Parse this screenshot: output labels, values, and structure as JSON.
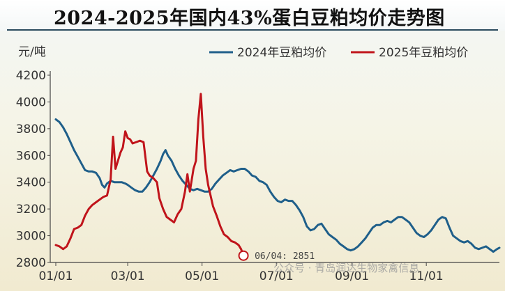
{
  "chart_data": {
    "type": "line",
    "title": "2024-2025年国内43%蛋白豆粕均价走势图",
    "ylabel": "元/吨",
    "ylim": [
      2800,
      4200
    ],
    "yticks": [
      "4200",
      "4000",
      "3800",
      "3600",
      "3400",
      "3200",
      "3000",
      "2800"
    ],
    "xlim": [
      "01/01",
      "12/31"
    ],
    "xticks": [
      "01/01",
      "03/01",
      "05/01",
      "07/01",
      "09/01",
      "11/01"
    ],
    "legend_position": "top-right",
    "grid": false,
    "series": [
      {
        "name": "2024年豆粕均价",
        "color": "#1f5f8a",
        "points": [
          [
            "01/01",
            3870
          ],
          [
            "01/04",
            3850
          ],
          [
            "01/07",
            3810
          ],
          [
            "01/10",
            3760
          ],
          [
            "01/13",
            3700
          ],
          [
            "01/16",
            3640
          ],
          [
            "01/19",
            3590
          ],
          [
            "01/22",
            3540
          ],
          [
            "01/25",
            3490
          ],
          [
            "01/28",
            3480
          ],
          [
            "01/31",
            3480
          ],
          [
            "02/03",
            3470
          ],
          [
            "02/06",
            3430
          ],
          [
            "02/08",
            3380
          ],
          [
            "02/10",
            3360
          ],
          [
            "02/12",
            3390
          ],
          [
            "02/15",
            3410
          ],
          [
            "02/18",
            3400
          ],
          [
            "02/21",
            3400
          ],
          [
            "02/24",
            3400
          ],
          [
            "02/27",
            3390
          ],
          [
            "03/01",
            3380
          ],
          [
            "03/04",
            3360
          ],
          [
            "03/07",
            3340
          ],
          [
            "03/10",
            3330
          ],
          [
            "03/13",
            3330
          ],
          [
            "03/16",
            3360
          ],
          [
            "03/19",
            3400
          ],
          [
            "03/22",
            3450
          ],
          [
            "03/25",
            3500
          ],
          [
            "03/28",
            3560
          ],
          [
            "03/30",
            3610
          ],
          [
            "04/01",
            3640
          ],
          [
            "04/03",
            3600
          ],
          [
            "04/06",
            3560
          ],
          [
            "04/09",
            3500
          ],
          [
            "04/12",
            3450
          ],
          [
            "04/15",
            3410
          ],
          [
            "04/18",
            3380
          ],
          [
            "04/21",
            3350
          ],
          [
            "04/24",
            3340
          ],
          [
            "04/27",
            3350
          ],
          [
            "04/30",
            3340
          ],
          [
            "05/03",
            3330
          ],
          [
            "05/06",
            3330
          ],
          [
            "05/09",
            3350
          ],
          [
            "05/12",
            3390
          ],
          [
            "05/15",
            3420
          ],
          [
            "05/18",
            3450
          ],
          [
            "05/21",
            3470
          ],
          [
            "05/24",
            3490
          ],
          [
            "05/27",
            3480
          ],
          [
            "05/30",
            3490
          ],
          [
            "06/02",
            3500
          ],
          [
            "06/05",
            3500
          ],
          [
            "06/08",
            3480
          ],
          [
            "06/11",
            3450
          ],
          [
            "06/14",
            3440
          ],
          [
            "06/17",
            3410
          ],
          [
            "06/20",
            3400
          ],
          [
            "06/23",
            3380
          ],
          [
            "06/26",
            3330
          ],
          [
            "06/29",
            3290
          ],
          [
            "07/02",
            3260
          ],
          [
            "07/05",
            3250
          ],
          [
            "07/08",
            3270
          ],
          [
            "07/11",
            3260
          ],
          [
            "07/14",
            3260
          ],
          [
            "07/17",
            3230
          ],
          [
            "07/20",
            3190
          ],
          [
            "07/23",
            3140
          ],
          [
            "07/26",
            3070
          ],
          [
            "07/29",
            3040
          ],
          [
            "08/01",
            3050
          ],
          [
            "08/04",
            3080
          ],
          [
            "08/07",
            3090
          ],
          [
            "08/10",
            3050
          ],
          [
            "08/13",
            3010
          ],
          [
            "08/16",
            2990
          ],
          [
            "08/19",
            2970
          ],
          [
            "08/22",
            2940
          ],
          [
            "08/25",
            2920
          ],
          [
            "08/28",
            2900
          ],
          [
            "08/31",
            2890
          ],
          [
            "09/03",
            2900
          ],
          [
            "09/06",
            2920
          ],
          [
            "09/09",
            2950
          ],
          [
            "09/12",
            2980
          ],
          [
            "09/15",
            3020
          ],
          [
            "09/18",
            3060
          ],
          [
            "09/21",
            3080
          ],
          [
            "09/24",
            3080
          ],
          [
            "09/27",
            3100
          ],
          [
            "09/30",
            3110
          ],
          [
            "10/03",
            3100
          ],
          [
            "10/06",
            3120
          ],
          [
            "10/09",
            3140
          ],
          [
            "10/12",
            3140
          ],
          [
            "10/15",
            3120
          ],
          [
            "10/18",
            3100
          ],
          [
            "10/21",
            3060
          ],
          [
            "10/24",
            3020
          ],
          [
            "10/27",
            3000
          ],
          [
            "10/30",
            2990
          ],
          [
            "11/02",
            3010
          ],
          [
            "11/05",
            3040
          ],
          [
            "11/08",
            3080
          ],
          [
            "11/11",
            3120
          ],
          [
            "11/14",
            3140
          ],
          [
            "11/17",
            3130
          ],
          [
            "11/20",
            3060
          ],
          [
            "11/23",
            3000
          ],
          [
            "11/26",
            2980
          ],
          [
            "11/29",
            2960
          ],
          [
            "12/02",
            2950
          ],
          [
            "12/05",
            2960
          ],
          [
            "12/08",
            2940
          ],
          [
            "12/11",
            2910
          ],
          [
            "12/14",
            2900
          ],
          [
            "12/17",
            2910
          ],
          [
            "12/20",
            2920
          ],
          [
            "12/23",
            2900
          ],
          [
            "12/26",
            2880
          ],
          [
            "12/29",
            2900
          ],
          [
            "12/31",
            2910
          ]
        ]
      },
      {
        "name": "2025年豆粕均价",
        "color": "#c0141b",
        "points": [
          [
            "01/01",
            2930
          ],
          [
            "01/04",
            2920
          ],
          [
            "01/07",
            2900
          ],
          [
            "01/10",
            2920
          ],
          [
            "01/13",
            2980
          ],
          [
            "01/16",
            3050
          ],
          [
            "01/19",
            3060
          ],
          [
            "01/22",
            3080
          ],
          [
            "01/25",
            3150
          ],
          [
            "01/28",
            3200
          ],
          [
            "01/31",
            3230
          ],
          [
            "02/03",
            3250
          ],
          [
            "02/06",
            3270
          ],
          [
            "02/09",
            3290
          ],
          [
            "02/12",
            3300
          ],
          [
            "02/15",
            3420
          ],
          [
            "02/17",
            3740
          ],
          [
            "02/19",
            3500
          ],
          [
            "02/21",
            3560
          ],
          [
            "02/23",
            3620
          ],
          [
            "02/25",
            3660
          ],
          [
            "02/27",
            3780
          ],
          [
            "03/01",
            3730
          ],
          [
            "03/03",
            3720
          ],
          [
            "03/05",
            3690
          ],
          [
            "03/08",
            3700
          ],
          [
            "03/11",
            3710
          ],
          [
            "03/14",
            3700
          ],
          [
            "03/17",
            3480
          ],
          [
            "03/19",
            3450
          ],
          [
            "03/22",
            3430
          ],
          [
            "03/25",
            3400
          ],
          [
            "03/27",
            3280
          ],
          [
            "03/30",
            3200
          ],
          [
            "04/02",
            3140
          ],
          [
            "04/05",
            3120
          ],
          [
            "04/08",
            3100
          ],
          [
            "04/11",
            3160
          ],
          [
            "04/14",
            3200
          ],
          [
            "04/17",
            3330
          ],
          [
            "04/19",
            3460
          ],
          [
            "04/21",
            3330
          ],
          [
            "04/24",
            3500
          ],
          [
            "04/26",
            3560
          ],
          [
            "04/28",
            3870
          ],
          [
            "04/30",
            4060
          ],
          [
            "05/02",
            3740
          ],
          [
            "05/04",
            3500
          ],
          [
            "05/06",
            3380
          ],
          [
            "05/08",
            3300
          ],
          [
            "05/10",
            3220
          ],
          [
            "05/13",
            3150
          ],
          [
            "05/16",
            3070
          ],
          [
            "05/19",
            3010
          ],
          [
            "05/22",
            2990
          ],
          [
            "05/25",
            2960
          ],
          [
            "05/28",
            2950
          ],
          [
            "05/31",
            2930
          ],
          [
            "06/02",
            2900
          ],
          [
            "06/04",
            2851
          ]
        ]
      }
    ],
    "annotations": [
      {
        "x": "06/04",
        "y": 2851,
        "text": "06/04: 2851"
      }
    ]
  },
  "watermark": "公众号 · 青岛润达生物家禽信息"
}
